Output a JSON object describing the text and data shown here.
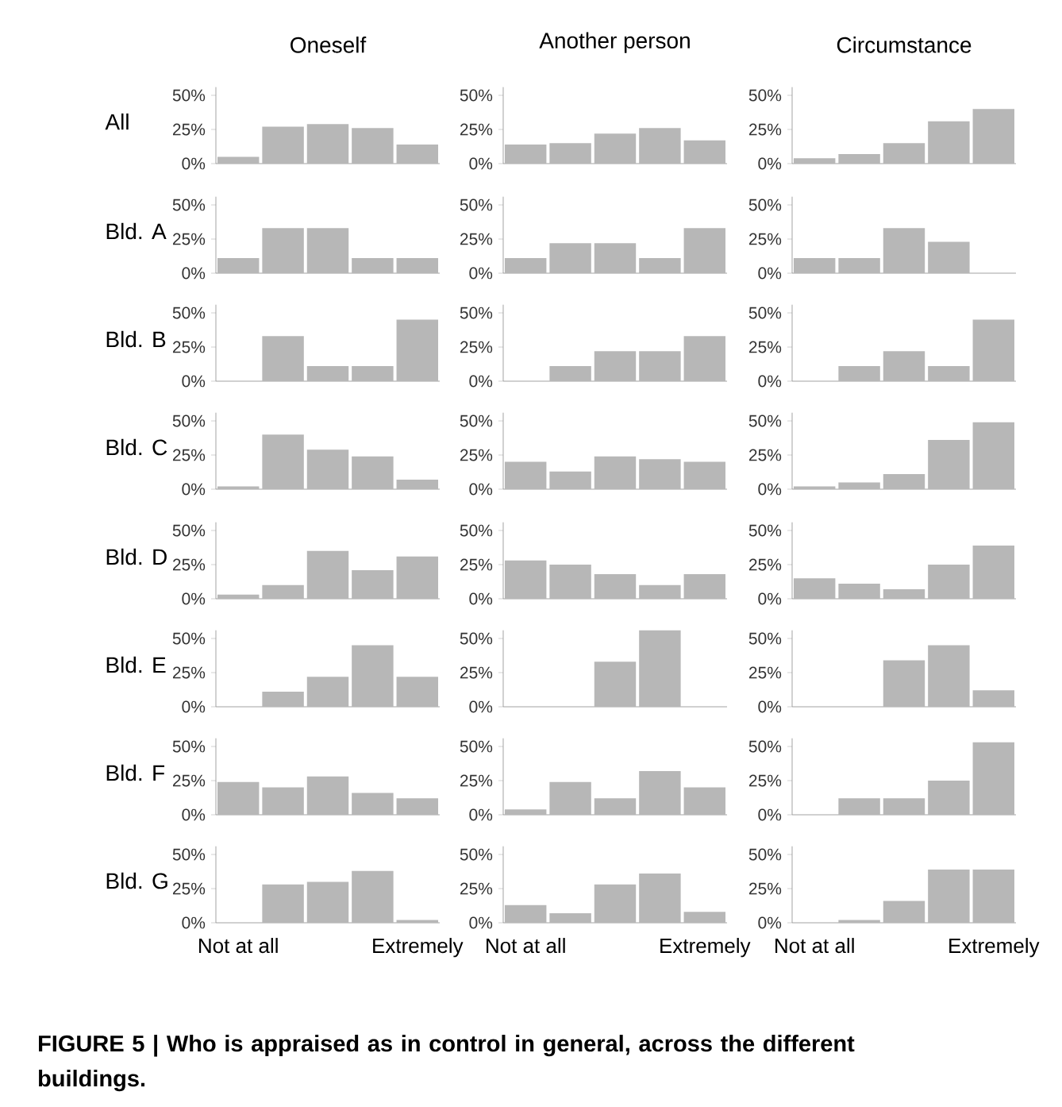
{
  "chart_data": [
    {
      "type": "bar",
      "title": "Oneself",
      "ylabel": "All",
      "categories": [
        null,
        null,
        null,
        null,
        null
      ],
      "values": [
        5,
        27,
        29,
        26,
        14
      ],
      "color": "#b7b7b7",
      "ylim": [
        0,
        56
      ],
      "yticks": [
        {
          "value": 0,
          "label": "0%"
        },
        {
          "value": 25,
          "label": "25%"
        },
        {
          "value": 50,
          "label": "50%"
        }
      ],
      "tick_labels": "y"
    },
    {
      "type": "bar",
      "title": "Another person",
      "categories": [
        null,
        null,
        null,
        null,
        null
      ],
      "values": [
        14,
        15,
        22,
        26,
        17
      ],
      "color": "#b7b7b7",
      "ylim": [
        0,
        56
      ],
      "yticks": [
        {
          "value": 0,
          "label": "0%"
        },
        {
          "value": 25,
          "label": "25%"
        },
        {
          "value": 50,
          "label": "50%"
        }
      ],
      "tick_labels": "y"
    },
    {
      "type": "bar",
      "title": "Circumstance",
      "categories": [
        null,
        null,
        null,
        null,
        null
      ],
      "values": [
        4,
        7,
        15,
        31,
        40
      ],
      "color": "#b7b7b7",
      "ylim": [
        0,
        56
      ],
      "yticks": [
        {
          "value": 0,
          "label": "0%"
        },
        {
          "value": 25,
          "label": "25%"
        },
        {
          "value": 50,
          "label": "50%"
        }
      ],
      "tick_labels": "y"
    },
    {
      "type": "bar",
      "ylabel": "Bld. A",
      "categories": [
        null,
        null,
        null,
        null,
        null
      ],
      "values": [
        11,
        33,
        33,
        11,
        11
      ],
      "color": "#b7b7b7",
      "ylim": [
        0,
        56
      ],
      "yticks": [
        {
          "value": 0,
          "label": "0%"
        },
        {
          "value": 25,
          "label": "25%"
        },
        {
          "value": 50,
          "label": "50%"
        }
      ],
      "tick_labels": "y"
    },
    {
      "type": "bar",
      "categories": [
        null,
        null,
        null,
        null,
        null
      ],
      "values": [
        11,
        22,
        22,
        11,
        33
      ],
      "color": "#b7b7b7",
      "ylim": [
        0,
        56
      ],
      "yticks": [
        {
          "value": 0,
          "label": "0%"
        },
        {
          "value": 25,
          "label": "25%"
        },
        {
          "value": 50,
          "label": "50%"
        }
      ],
      "tick_labels": "y"
    },
    {
      "type": "bar",
      "categories": [
        null,
        null,
        null,
        null,
        null
      ],
      "values": [
        11,
        11,
        33,
        23,
        0
      ],
      "color": "#b7b7b7",
      "ylim": [
        0,
        56
      ],
      "yticks": [
        {
          "value": 0,
          "label": "0%"
        },
        {
          "value": 25,
          "label": "25%"
        },
        {
          "value": 50,
          "label": "50%"
        }
      ],
      "tick_labels": "y"
    },
    {
      "type": "bar",
      "ylabel": "Bld. B",
      "categories": [
        null,
        null,
        null,
        null,
        null
      ],
      "values": [
        0,
        33,
        11,
        11,
        45
      ],
      "color": "#b7b7b7",
      "ylim": [
        0,
        56
      ],
      "yticks": [
        {
          "value": 0,
          "label": "0%"
        },
        {
          "value": 25,
          "label": "25%"
        },
        {
          "value": 50,
          "label": "50%"
        }
      ],
      "tick_labels": "y"
    },
    {
      "type": "bar",
      "categories": [
        null,
        null,
        null,
        null,
        null
      ],
      "values": [
        0,
        11,
        22,
        22,
        33
      ],
      "color": "#b7b7b7",
      "ylim": [
        0,
        56
      ],
      "yticks": [
        {
          "value": 0,
          "label": "0%"
        },
        {
          "value": 25,
          "label": "25%"
        },
        {
          "value": 50,
          "label": "50%"
        }
      ],
      "tick_labels": "y"
    },
    {
      "type": "bar",
      "categories": [
        null,
        null,
        null,
        null,
        null
      ],
      "values": [
        0,
        11,
        22,
        11,
        45
      ],
      "color": "#b7b7b7",
      "ylim": [
        0,
        56
      ],
      "yticks": [
        {
          "value": 0,
          "label": "0%"
        },
        {
          "value": 25,
          "label": "25%"
        },
        {
          "value": 50,
          "label": "50%"
        }
      ],
      "tick_labels": "y"
    },
    {
      "type": "bar",
      "ylabel": "Bld. C",
      "categories": [
        null,
        null,
        null,
        null,
        null
      ],
      "values": [
        2,
        40,
        29,
        24,
        7
      ],
      "color": "#b7b7b7",
      "ylim": [
        0,
        56
      ],
      "yticks": [
        {
          "value": 0,
          "label": "0%"
        },
        {
          "value": 25,
          "label": "25%"
        },
        {
          "value": 50,
          "label": "50%"
        }
      ],
      "tick_labels": "y"
    },
    {
      "type": "bar",
      "categories": [
        null,
        null,
        null,
        null,
        null
      ],
      "values": [
        20,
        13,
        24,
        22,
        20
      ],
      "color": "#b7b7b7",
      "ylim": [
        0,
        56
      ],
      "yticks": [
        {
          "value": 0,
          "label": "0%"
        },
        {
          "value": 25,
          "label": "25%"
        },
        {
          "value": 50,
          "label": "50%"
        }
      ],
      "tick_labels": "y"
    },
    {
      "type": "bar",
      "categories": [
        null,
        null,
        null,
        null,
        null
      ],
      "values": [
        2,
        5,
        11,
        36,
        49
      ],
      "color": "#b7b7b7",
      "ylim": [
        0,
        56
      ],
      "yticks": [
        {
          "value": 0,
          "label": "0%"
        },
        {
          "value": 25,
          "label": "25%"
        },
        {
          "value": 50,
          "label": "50%"
        }
      ],
      "tick_labels": "y"
    },
    {
      "type": "bar",
      "ylabel": "Bld. D",
      "categories": [
        null,
        null,
        null,
        null,
        null
      ],
      "values": [
        3,
        10,
        35,
        21,
        31
      ],
      "color": "#b7b7b7",
      "ylim": [
        0,
        56
      ],
      "yticks": [
        {
          "value": 0,
          "label": "0%"
        },
        {
          "value": 25,
          "label": "25%"
        },
        {
          "value": 50,
          "label": "50%"
        }
      ],
      "tick_labels": "y"
    },
    {
      "type": "bar",
      "categories": [
        null,
        null,
        null,
        null,
        null
      ],
      "values": [
        28,
        25,
        18,
        10,
        18
      ],
      "color": "#b7b7b7",
      "ylim": [
        0,
        56
      ],
      "yticks": [
        {
          "value": 0,
          "label": "0%"
        },
        {
          "value": 25,
          "label": "25%"
        },
        {
          "value": 50,
          "label": "50%"
        }
      ],
      "tick_labels": "y"
    },
    {
      "type": "bar",
      "categories": [
        null,
        null,
        null,
        null,
        null
      ],
      "values": [
        15,
        11,
        7,
        25,
        39
      ],
      "color": "#b7b7b7",
      "ylim": [
        0,
        56
      ],
      "yticks": [
        {
          "value": 0,
          "label": "0%"
        },
        {
          "value": 25,
          "label": "25%"
        },
        {
          "value": 50,
          "label": "50%"
        }
      ],
      "tick_labels": "y"
    },
    {
      "type": "bar",
      "ylabel": "Bld. E",
      "categories": [
        null,
        null,
        null,
        null,
        null
      ],
      "values": [
        0,
        11,
        22,
        45,
        22
      ],
      "color": "#b7b7b7",
      "ylim": [
        0,
        56
      ],
      "yticks": [
        {
          "value": 0,
          "label": "0%"
        },
        {
          "value": 25,
          "label": "25%"
        },
        {
          "value": 50,
          "label": "50%"
        }
      ],
      "tick_labels": "y"
    },
    {
      "type": "bar",
      "categories": [
        null,
        null,
        null,
        null,
        null
      ],
      "values": [
        0,
        0,
        33,
        56,
        0
      ],
      "color": "#b7b7b7",
      "ylim": [
        0,
        56.0
      ],
      "yticks": [
        {
          "value": 0,
          "label": "0%"
        },
        {
          "value": 25,
          "label": "25%"
        },
        {
          "value": 50,
          "label": "50%"
        }
      ],
      "tick_labels": "y"
    },
    {
      "type": "bar",
      "categories": [
        null,
        null,
        null,
        null,
        null
      ],
      "values": [
        0,
        0,
        34,
        45,
        12
      ],
      "color": "#b7b7b7",
      "ylim": [
        0,
        56
      ],
      "yticks": [
        {
          "value": 0,
          "label": "0%"
        },
        {
          "value": 25,
          "label": "25%"
        },
        {
          "value": 50,
          "label": "50%"
        }
      ],
      "tick_labels": "y"
    },
    {
      "type": "bar",
      "ylabel": "Bld. F",
      "categories": [
        null,
        null,
        null,
        null,
        null
      ],
      "values": [
        24,
        20,
        28,
        16,
        12
      ],
      "color": "#b7b7b7",
      "ylim": [
        0,
        56
      ],
      "yticks": [
        {
          "value": 0,
          "label": "0%"
        },
        {
          "value": 25,
          "label": "25%"
        },
        {
          "value": 50,
          "label": "50%"
        }
      ],
      "tick_labels": "y"
    },
    {
      "type": "bar",
      "categories": [
        null,
        null,
        null,
        null,
        null
      ],
      "values": [
        4,
        24,
        12,
        32,
        20
      ],
      "color": "#b7b7b7",
      "ylim": [
        0,
        56
      ],
      "yticks": [
        {
          "value": 0,
          "label": "0%"
        },
        {
          "value": 25,
          "label": "25%"
        },
        {
          "value": 50,
          "label": "50%"
        }
      ],
      "tick_labels": "y"
    },
    {
      "type": "bar",
      "categories": [
        null,
        null,
        null,
        null,
        null
      ],
      "values": [
        0,
        12,
        12,
        25,
        53
      ],
      "color": "#b7b7b7",
      "ylim": [
        0,
        56
      ],
      "yticks": [
        {
          "value": 0,
          "label": "0%"
        },
        {
          "value": 25,
          "label": "25%"
        },
        {
          "value": 50,
          "label": "50%"
        }
      ],
      "tick_labels": "y"
    },
    {
      "type": "bar",
      "ylabel": "Bld. G",
      "categories": [
        "Not at all",
        null,
        null,
        null,
        "Extremely"
      ],
      "values": [
        0,
        28,
        30,
        38,
        2
      ],
      "color": "#b7b7b7",
      "ylim": [
        0,
        56
      ],
      "yticks": [
        {
          "value": 0,
          "label": "0%"
        },
        {
          "value": 25,
          "label": "25%"
        },
        {
          "value": 50,
          "label": "50%"
        }
      ]
    },
    {
      "type": "bar",
      "categories": [
        "Not at all",
        null,
        null,
        null,
        "Extremely"
      ],
      "values": [
        13,
        7,
        28,
        36,
        8
      ],
      "color": "#b7b7b7",
      "ylim": [
        0,
        56
      ],
      "yticks": [
        {
          "value": 0,
          "label": "0%"
        },
        {
          "value": 25,
          "label": "25%"
        },
        {
          "value": 50,
          "label": "50%"
        }
      ]
    },
    {
      "type": "bar",
      "categories": [
        "Not at all",
        null,
        null,
        null,
        "Extremely"
      ],
      "values": [
        0,
        2,
        16,
        39,
        39
      ],
      "color": "#b7b7b7",
      "ylim": [
        0,
        56
      ],
      "yticks": [
        {
          "value": 0,
          "label": "0%"
        },
        {
          "value": 25,
          "label": "25%"
        },
        {
          "value": 50,
          "label": "50%"
        }
      ],
      "annotations": [
        "FIGURE 5 | Who is appraised as in control in general, across the different buildings."
      ]
    }
  ]
}
